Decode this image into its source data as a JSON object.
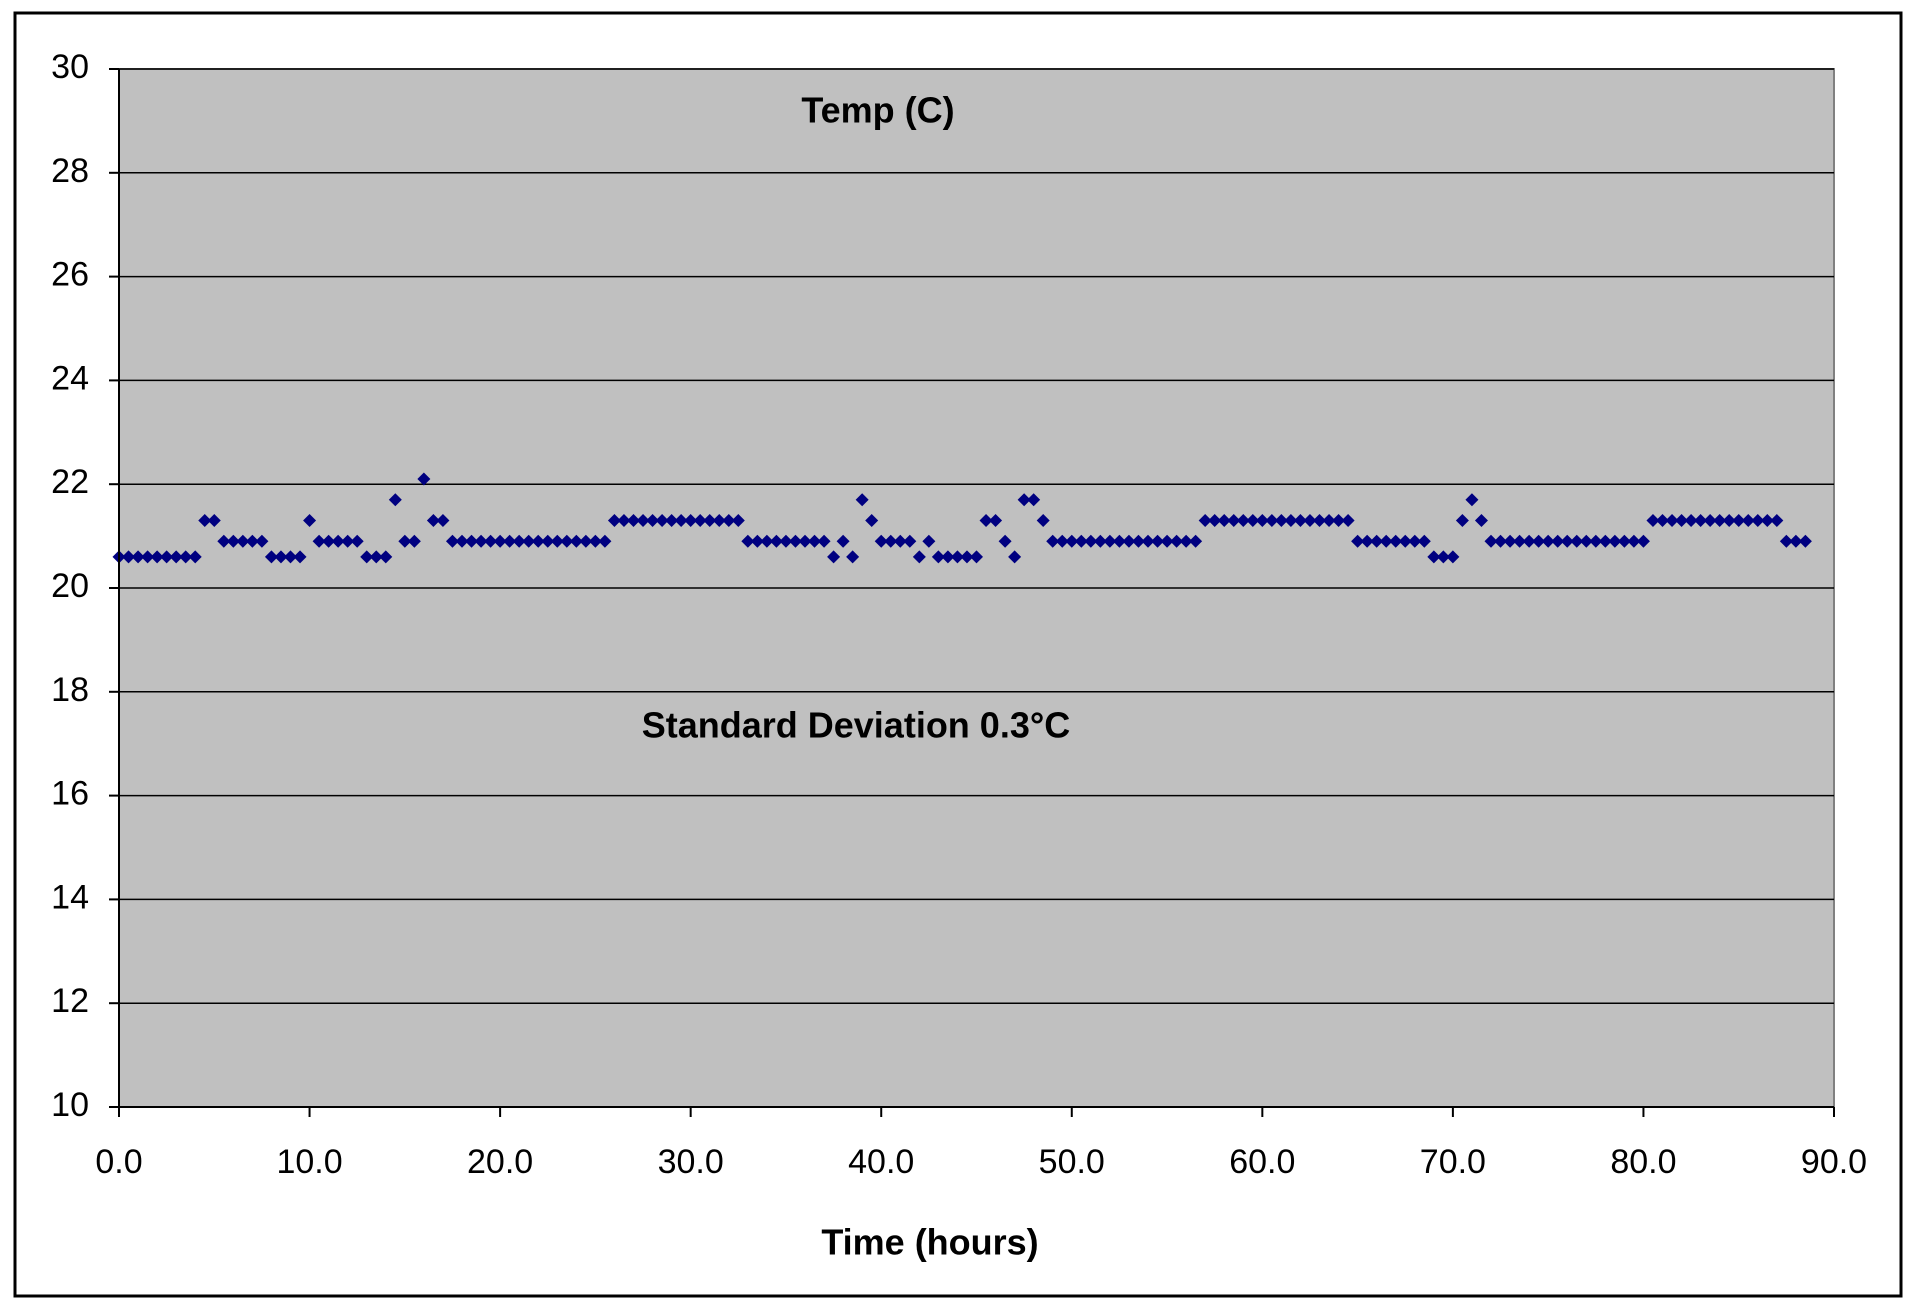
{
  "chart_data": {
    "type": "scatter",
    "title": "Temp (C)",
    "annotation": "Standard Deviation 0.3°C",
    "x_label": "Time (hours)",
    "color": "#000080",
    "marker": "diamond",
    "grid": true,
    "background": "#c0c0c0",
    "xlim": [
      0,
      90
    ],
    "ylim": [
      10,
      30
    ],
    "xticks": [
      {
        "value": 0,
        "label": "0.0"
      },
      {
        "value": 10,
        "label": "10.0"
      },
      {
        "value": 20,
        "label": "20.0"
      },
      {
        "value": 30,
        "label": "30.0"
      },
      {
        "value": 40,
        "label": "40.0"
      },
      {
        "value": 50,
        "label": "50.0"
      },
      {
        "value": 60,
        "label": "60.0"
      },
      {
        "value": 70,
        "label": "70.0"
      },
      {
        "value": 80,
        "label": "80.0"
      },
      {
        "value": 90,
        "label": "90.0"
      }
    ],
    "yticks": [
      10,
      12,
      14,
      16,
      18,
      20,
      22,
      24,
      26,
      28,
      30
    ],
    "x": [
      0,
      0.5,
      1,
      1.5,
      2,
      2.5,
      3,
      3.5,
      4,
      4.5,
      5,
      5.5,
      6,
      6.5,
      7,
      7.5,
      8,
      8.5,
      9,
      9.5,
      10,
      10.5,
      11,
      11.5,
      12,
      12.5,
      13,
      13.5,
      14,
      14.5,
      15,
      15.5,
      16,
      16.5,
      17,
      17.5,
      18,
      18.5,
      19,
      19.5,
      20,
      20.5,
      21,
      21.5,
      22,
      22.5,
      23,
      23.5,
      24,
      24.5,
      25,
      25.5,
      26,
      26.5,
      27,
      27.5,
      28,
      28.5,
      29,
      29.5,
      30,
      30.5,
      31,
      31.5,
      32,
      32.5,
      33,
      33.5,
      34,
      34.5,
      35,
      35.5,
      36,
      36.5,
      37,
      37.5,
      38,
      38.5,
      39,
      39.5,
      40,
      40.5,
      41,
      41.5,
      42,
      42.5,
      43,
      43.5,
      44,
      44.5,
      45,
      45.5,
      46,
      46.5,
      47,
      47.5,
      48,
      48.5,
      49,
      49.5,
      50,
      50.5,
      51,
      51.5,
      52,
      52.5,
      53,
      53.5,
      54,
      54.5,
      55,
      55.5,
      56,
      56.5,
      57,
      57.5,
      58,
      58.5,
      59,
      59.5,
      60,
      60.5,
      61,
      61.5,
      62,
      62.5,
      63,
      63.5,
      64,
      64.5,
      65,
      65.5,
      66,
      66.5,
      67,
      67.5,
      68,
      68.5,
      69,
      69.5,
      70,
      70.5,
      71,
      71.5,
      72,
      72.5,
      73,
      73.5,
      74,
      74.5,
      75,
      75.5,
      76,
      76.5,
      77,
      77.5,
      78,
      78.5,
      79,
      79.5,
      80,
      80.5,
      81,
      81.5,
      82,
      82.5,
      83,
      83.5,
      84,
      84.5,
      85,
      85.5,
      86,
      86.5,
      87,
      87.5,
      88,
      88.5
    ],
    "values": [
      20.6,
      20.6,
      20.6,
      20.6,
      20.6,
      20.6,
      20.6,
      20.6,
      20.6,
      21.3,
      21.3,
      20.9,
      20.9,
      20.9,
      20.9,
      20.9,
      20.6,
      20.6,
      20.6,
      20.6,
      21.3,
      20.9,
      20.9,
      20.9,
      20.9,
      20.9,
      20.6,
      20.6,
      20.6,
      21.7,
      20.9,
      20.9,
      22.1,
      21.3,
      21.3,
      20.9,
      20.9,
      20.9,
      20.9,
      20.9,
      20.9,
      20.9,
      20.9,
      20.9,
      20.9,
      20.9,
      20.9,
      20.9,
      20.9,
      20.9,
      20.9,
      20.9,
      21.3,
      21.3,
      21.3,
      21.3,
      21.3,
      21.3,
      21.3,
      21.3,
      21.3,
      21.3,
      21.3,
      21.3,
      21.3,
      21.3,
      20.9,
      20.9,
      20.9,
      20.9,
      20.9,
      20.9,
      20.9,
      20.9,
      20.9,
      20.6,
      20.9,
      20.6,
      21.7,
      21.3,
      20.9,
      20.9,
      20.9,
      20.9,
      20.6,
      20.9,
      20.6,
      20.6,
      20.6,
      20.6,
      20.6,
      21.3,
      21.3,
      20.9,
      20.6,
      21.7,
      21.7,
      21.3,
      20.9,
      20.9,
      20.9,
      20.9,
      20.9,
      20.9,
      20.9,
      20.9,
      20.9,
      20.9,
      20.9,
      20.9,
      20.9,
      20.9,
      20.9,
      20.9,
      21.3,
      21.3,
      21.3,
      21.3,
      21.3,
      21.3,
      21.3,
      21.3,
      21.3,
      21.3,
      21.3,
      21.3,
      21.3,
      21.3,
      21.3,
      21.3,
      20.9,
      20.9,
      20.9,
      20.9,
      20.9,
      20.9,
      20.9,
      20.9,
      20.6,
      20.6,
      20.6,
      21.3,
      21.7,
      21.3,
      20.9,
      20.9,
      20.9,
      20.9,
      20.9,
      20.9,
      20.9,
      20.9,
      20.9,
      20.9,
      20.9,
      20.9,
      20.9,
      20.9,
      20.9,
      20.9,
      20.9,
      21.3,
      21.3,
      21.3,
      21.3,
      21.3,
      21.3,
      21.3,
      21.3,
      21.3,
      21.3,
      21.3,
      21.3,
      21.3,
      21.3,
      20.9,
      20.9,
      20.9
    ]
  }
}
